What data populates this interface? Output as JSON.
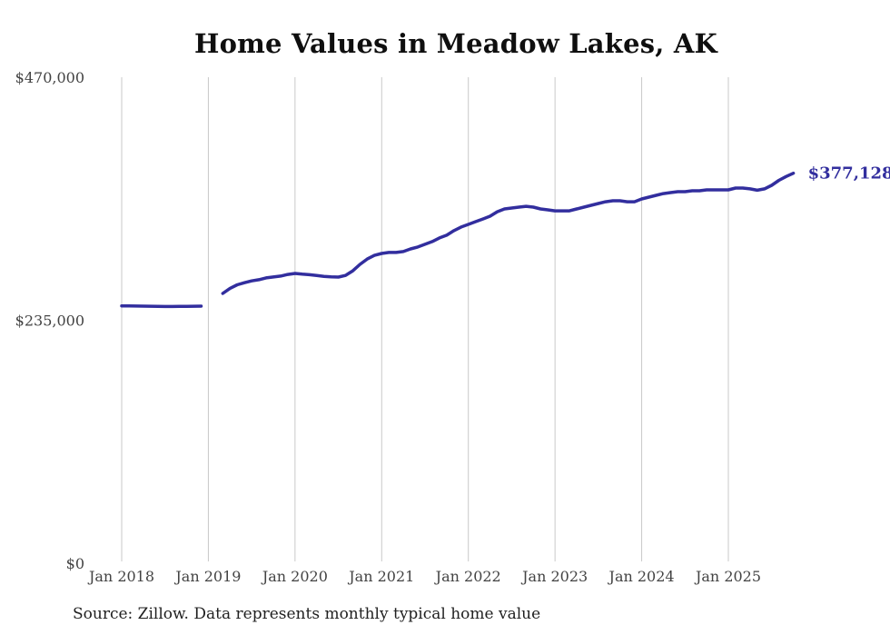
{
  "title": "Home Values in Meadow Lakes, AK",
  "source_note": "Source: Zillow. Data represents monthly typical home value",
  "colors": {
    "line": "#322E9E",
    "grid": "#c9c9c9",
    "axis_text": "#434343",
    "title_text": "#0f0f0f",
    "source_text": "#1f1f1f",
    "background": "#ffffff"
  },
  "chart_data": {
    "type": "line",
    "title": "Home Values in Meadow Lakes, AK",
    "series_name": "Typical monthly home value (USD)",
    "xlabel": "",
    "ylabel": "",
    "ylim": [
      0,
      470000
    ],
    "grid": "vertical-only",
    "legend": "none",
    "end_label": "$377,128",
    "end_value": 377128,
    "yticks": [
      {
        "label": "$470,000",
        "value": 470000
      },
      {
        "label": "$235,000",
        "value": 235000
      },
      {
        "label": "$0",
        "value": 0
      }
    ],
    "xticks": [
      {
        "label": "Jan 2018",
        "month_index": 0
      },
      {
        "label": "Jan 2019",
        "month_index": 12
      },
      {
        "label": "Jan 2020",
        "month_index": 24
      },
      {
        "label": "Jan 2021",
        "month_index": 36
      },
      {
        "label": "Jan 2022",
        "month_index": 48
      },
      {
        "label": "Jan 2023",
        "month_index": 60
      },
      {
        "label": "Jan 2024",
        "month_index": 72
      },
      {
        "label": "Jan 2025",
        "month_index": 84
      }
    ],
    "x": [
      "2018-01",
      "2018-02",
      "2018-03",
      "2018-04",
      "2018-05",
      "2018-06",
      "2018-07",
      "2018-08",
      "2018-09",
      "2018-10",
      "2018-11",
      "2018-12",
      "2019-01",
      "2019-02",
      "2019-03",
      "2019-04",
      "2019-05",
      "2019-06",
      "2019-07",
      "2019-08",
      "2019-09",
      "2019-10",
      "2019-11",
      "2019-12",
      "2020-01",
      "2020-02",
      "2020-03",
      "2020-04",
      "2020-05",
      "2020-06",
      "2020-07",
      "2020-08",
      "2020-09",
      "2020-10",
      "2020-11",
      "2020-12",
      "2021-01",
      "2021-02",
      "2021-03",
      "2021-04",
      "2021-05",
      "2021-06",
      "2021-07",
      "2021-08",
      "2021-09",
      "2021-10",
      "2021-11",
      "2021-12",
      "2022-01",
      "2022-02",
      "2022-03",
      "2022-04",
      "2022-05",
      "2022-06",
      "2022-07",
      "2022-08",
      "2022-09",
      "2022-10",
      "2022-11",
      "2022-12",
      "2023-01",
      "2023-02",
      "2023-03",
      "2023-04",
      "2023-05",
      "2023-06",
      "2023-07",
      "2023-08",
      "2023-09",
      "2023-10",
      "2023-11",
      "2023-12",
      "2024-01",
      "2024-02",
      "2024-03",
      "2024-04",
      "2024-05",
      "2024-06",
      "2024-07",
      "2024-08",
      "2024-09",
      "2024-10",
      "2024-11",
      "2024-12",
      "2025-01",
      "2025-02",
      "2025-03",
      "2025-04",
      "2025-05",
      "2025-06",
      "2025-07",
      "2025-08",
      "2025-09",
      "2025-10"
    ],
    "values": [
      248900,
      248800,
      248700,
      248600,
      248500,
      248400,
      248300,
      248300,
      248400,
      248400,
      248500,
      248600,
      null,
      null,
      260900,
      265800,
      269300,
      271300,
      273000,
      274200,
      275900,
      276800,
      277700,
      279300,
      280200,
      279500,
      279000,
      278200,
      277400,
      277000,
      276700,
      278300,
      282800,
      289000,
      294200,
      297700,
      299600,
      300500,
      300500,
      301400,
      304000,
      305800,
      308400,
      311100,
      314600,
      317200,
      321600,
      325100,
      327700,
      330300,
      332900,
      335600,
      339900,
      342600,
      343500,
      344400,
      345200,
      344400,
      342600,
      341700,
      340800,
      340800,
      340800,
      342600,
      344400,
      346100,
      347900,
      349600,
      350500,
      350500,
      349600,
      349600,
      352300,
      354000,
      355800,
      357500,
      358400,
      359300,
      359300,
      360200,
      360200,
      361100,
      361100,
      361100,
      361100,
      362800,
      362800,
      362000,
      360700,
      362000,
      365500,
      370300,
      374000,
      377128
    ]
  }
}
